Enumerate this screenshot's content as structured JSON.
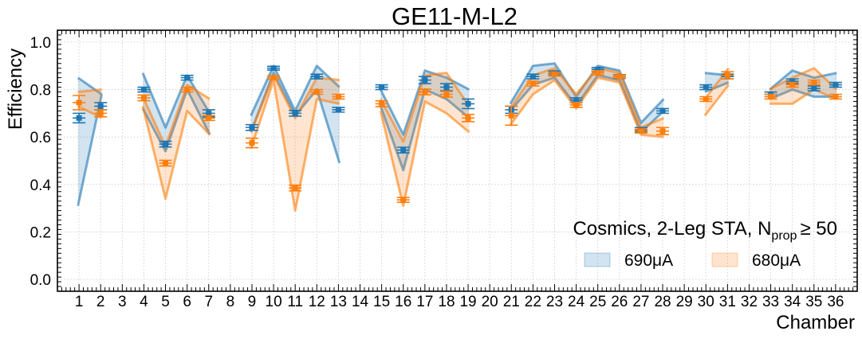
{
  "chart_data": {
    "type": "line",
    "title": "GE11-M-L2",
    "xlabel": "Chamber",
    "ylabel": "Efficiency",
    "xlim": [
      0,
      37
    ],
    "ylim": [
      -0.05,
      1.05
    ],
    "grid": true,
    "x_ticks": [
      1,
      2,
      3,
      4,
      5,
      6,
      7,
      8,
      9,
      10,
      11,
      12,
      13,
      14,
      15,
      16,
      17,
      18,
      19,
      20,
      21,
      22,
      23,
      24,
      25,
      26,
      27,
      28,
      29,
      30,
      31,
      32,
      33,
      34,
      35,
      36
    ],
    "y_ticks": [
      0.0,
      0.2,
      0.4,
      0.6,
      0.8,
      1.0
    ],
    "y_tick_labels": [
      "0.0",
      "0.2",
      "0.4",
      "0.6",
      "0.8",
      "1.0"
    ],
    "legend": {
      "title_main": "Cosmics, 2-Leg STA, N",
      "title_sub": "prop",
      "title_tail": "≥ 50",
      "placement": "bottom-right"
    },
    "series": [
      {
        "name": "690μA",
        "color": "#1f77b4",
        "points": [
          [
            1,
            0.68,
            0.02
          ],
          [
            2,
            0.73,
            0.015
          ],
          [
            4,
            0.8,
            0.01
          ],
          [
            5,
            0.57,
            0.012
          ],
          [
            6,
            0.85,
            0.01
          ],
          [
            7,
            0.7,
            0.015
          ],
          [
            9,
            0.64,
            0.012
          ],
          [
            10,
            0.89,
            0.008
          ],
          [
            11,
            0.7,
            0.012
          ],
          [
            12,
            0.855,
            0.01
          ],
          [
            13,
            0.715,
            0.01
          ],
          [
            15,
            0.81,
            0.01
          ],
          [
            16,
            0.545,
            0.012
          ],
          [
            17,
            0.84,
            0.015
          ],
          [
            18,
            0.81,
            0.015
          ],
          [
            19,
            0.74,
            0.02
          ],
          [
            21,
            0.715,
            0.015
          ],
          [
            22,
            0.855,
            0.01
          ],
          [
            23,
            0.87,
            0.008
          ],
          [
            24,
            0.755,
            0.01
          ],
          [
            25,
            0.885,
            0.008
          ],
          [
            26,
            0.855,
            0.008
          ],
          [
            27,
            0.63,
            0.01
          ],
          [
            28,
            0.71,
            0.01
          ],
          [
            30,
            0.81,
            0.01
          ],
          [
            31,
            0.855,
            0.01
          ],
          [
            33,
            0.78,
            0.01
          ],
          [
            34,
            0.835,
            0.01
          ],
          [
            35,
            0.805,
            0.01
          ],
          [
            36,
            0.82,
            0.01
          ]
        ],
        "bands": [
          [
            [
              0.95,
              0.85,
              0.31
            ],
            [
              2.05,
              0.78,
              0.78
            ]
          ],
          [
            [
              3.95,
              0.87,
              0.72
            ],
            [
              5,
              0.64,
              0.54
            ],
            [
              6,
              0.86,
              0.8
            ],
            [
              7.05,
              0.7,
              0.61
            ]
          ],
          [
            [
              8.95,
              0.69,
              0.62
            ],
            [
              10,
              0.9,
              0.87
            ],
            [
              11,
              0.71,
              0.69
            ],
            [
              12,
              0.9,
              0.8
            ],
            [
              13.05,
              0.81,
              0.49
            ]
          ],
          [
            [
              14.95,
              0.8,
              0.73
            ],
            [
              16,
              0.61,
              0.46
            ],
            [
              17,
              0.88,
              0.8
            ],
            [
              18,
              0.85,
              0.76
            ],
            [
              19.05,
              0.8,
              0.68
            ]
          ],
          [
            [
              20.95,
              0.74,
              0.71
            ],
            [
              22,
              0.9,
              0.82
            ],
            [
              23,
              0.91,
              0.85
            ],
            [
              24,
              0.77,
              0.73
            ],
            [
              25,
              0.9,
              0.86
            ],
            [
              26,
              0.88,
              0.84
            ],
            [
              27,
              0.66,
              0.62
            ],
            [
              28.05,
              0.76,
              0.71
            ]
          ],
          [
            [
              29.95,
              0.87,
              0.79
            ],
            [
              31.05,
              0.86,
              0.83
            ]
          ],
          [
            [
              32.95,
              0.8,
              0.76
            ],
            [
              34,
              0.88,
              0.8
            ],
            [
              35,
              0.85,
              0.77
            ],
            [
              36.05,
              0.87,
              0.77
            ]
          ]
        ]
      },
      {
        "name": "680μA",
        "color": "#ff7f0e",
        "points": [
          [
            1,
            0.745,
            0.03
          ],
          [
            2,
            0.7,
            0.015
          ],
          [
            4,
            0.765,
            0.012
          ],
          [
            5,
            0.49,
            0.012
          ],
          [
            6,
            0.8,
            0.01
          ],
          [
            7,
            0.68,
            0.01
          ],
          [
            9,
            0.575,
            0.02
          ],
          [
            10,
            0.85,
            0.008
          ],
          [
            11,
            0.385,
            0.012
          ],
          [
            12,
            0.79,
            0.01
          ],
          [
            13,
            0.77,
            0.01
          ],
          [
            15,
            0.74,
            0.012
          ],
          [
            16,
            0.335,
            0.01
          ],
          [
            17,
            0.79,
            0.012
          ],
          [
            18,
            0.78,
            0.012
          ],
          [
            19,
            0.68,
            0.015
          ],
          [
            21,
            0.69,
            0.04
          ],
          [
            22,
            0.825,
            0.01
          ],
          [
            23,
            0.865,
            0.008
          ],
          [
            24,
            0.735,
            0.01
          ],
          [
            25,
            0.87,
            0.008
          ],
          [
            26,
            0.855,
            0.006
          ],
          [
            27,
            0.625,
            0.008
          ],
          [
            28,
            0.625,
            0.015
          ],
          [
            30,
            0.76,
            0.01
          ],
          [
            31,
            0.86,
            0.015
          ],
          [
            33,
            0.77,
            0.01
          ],
          [
            34,
            0.82,
            0.01
          ],
          [
            35,
            0.83,
            0.01
          ],
          [
            36,
            0.77,
            0.01
          ]
        ],
        "bands": [
          [
            [
              0.95,
              0.79,
              0.73
            ],
            [
              2.05,
              0.8,
              0.68
            ]
          ],
          [
            [
              3.95,
              0.77,
              0.73
            ],
            [
              5,
              0.56,
              0.34
            ],
            [
              6,
              0.82,
              0.71
            ],
            [
              7.05,
              0.76,
              0.61
            ]
          ],
          [
            [
              8.95,
              0.62,
              0.55
            ],
            [
              10,
              0.86,
              0.84
            ],
            [
              11,
              0.68,
              0.29
            ],
            [
              12,
              0.85,
              0.76
            ],
            [
              13.05,
              0.84,
              0.74
            ]
          ],
          [
            [
              14.95,
              0.76,
              0.71
            ],
            [
              16,
              0.58,
              0.31
            ],
            [
              17,
              0.86,
              0.75
            ],
            [
              18,
              0.87,
              0.7
            ],
            [
              19.05,
              0.73,
              0.62
            ]
          ],
          [
            [
              20.95,
              0.72,
              0.65
            ],
            [
              22,
              0.86,
              0.78
            ],
            [
              23,
              0.89,
              0.84
            ],
            [
              24,
              0.78,
              0.72
            ],
            [
              25,
              0.89,
              0.85
            ],
            [
              26,
              0.87,
              0.83
            ],
            [
              27,
              0.64,
              0.61
            ],
            [
              28.05,
              0.68,
              0.6
            ]
          ],
          [
            [
              29.95,
              0.76,
              0.69
            ],
            [
              31.05,
              0.89,
              0.82
            ]
          ],
          [
            [
              32.95,
              0.8,
              0.74
            ],
            [
              34,
              0.85,
              0.74
            ],
            [
              35,
              0.89,
              0.8
            ],
            [
              36.05,
              0.8,
              0.76
            ]
          ]
        ]
      }
    ]
  }
}
